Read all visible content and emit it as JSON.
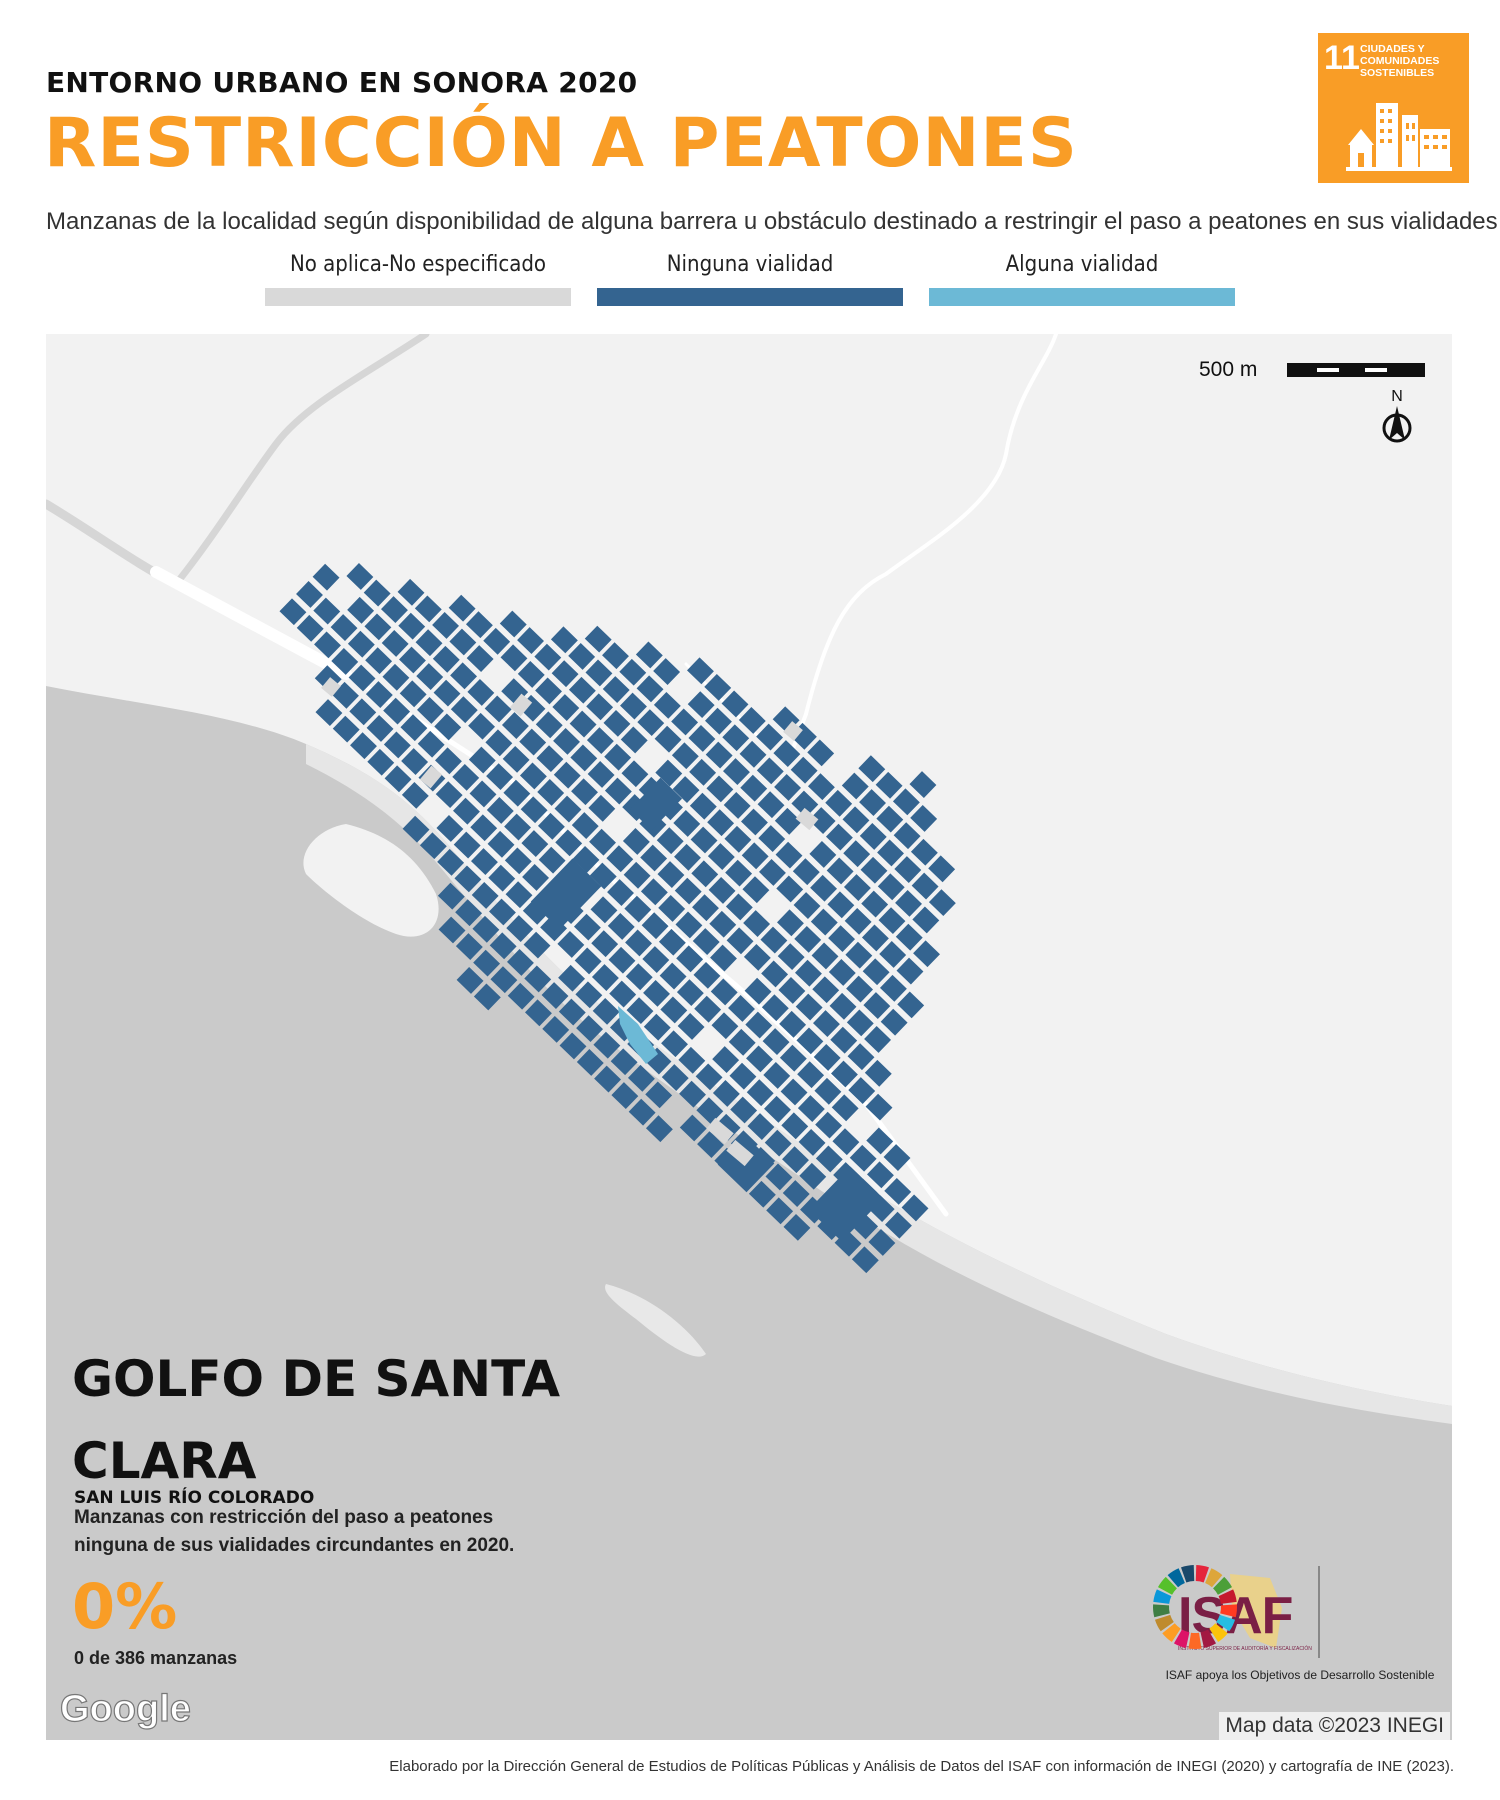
{
  "header": {
    "subtitle": "ENTORNO URBANO EN SONORA 2020",
    "title": "RESTRICCIÓN A PEATONES",
    "description": "Manzanas de la localidad según disponibilidad de alguna barrera u obstáculo destinado a restringir el paso a peatones en sus vialidades"
  },
  "sdg_badge": {
    "number": "11",
    "text": "CIUDADES Y COMUNIDADES SOSTENIBLES",
    "color": "#f99d26"
  },
  "legend": [
    {
      "label": "No aplica-No especificado",
      "color": "#d9d9d9"
    },
    {
      "label": "Ninguna vialidad",
      "color": "#346490"
    },
    {
      "label": "Alguna vialidad",
      "color": "#6cb9d6"
    }
  ],
  "map": {
    "scale_label": "500 m",
    "north_label": "N",
    "place_name": "GOLFO DE SANTA CLARA",
    "municipality": "SAN LUIS RÍO COLORADO",
    "stat_description": "Manzanas con restricción del paso a peatones ninguna de sus vialidades circundantes en 2020.",
    "stat_value": "0%",
    "stat_count": "0 de 386 manzanas",
    "google_label": "Google",
    "attribution": "Map data ©2023 INEGI",
    "colors": {
      "land": "#f2f2f2",
      "water": "#cacaca",
      "road": "#ffffff",
      "block_none": "#346490",
      "block_some": "#6cb9d6",
      "block_na": "#d9d9d9"
    }
  },
  "logos": {
    "isaf": "ISAF",
    "isaf_subtitle": "INSTITUTO SUPERIOR DE AUDITORÍA Y FISCALIZACIÓN",
    "caption": "ISAF apoya los Objetivos de Desarrollo Sostenible"
  },
  "footer": "Elaborado por la Dirección General de Estudios de Políticas Públicas y Análisis de Datos del ISAF con información de INEGI (2020) y cartografía de INE (2023)."
}
